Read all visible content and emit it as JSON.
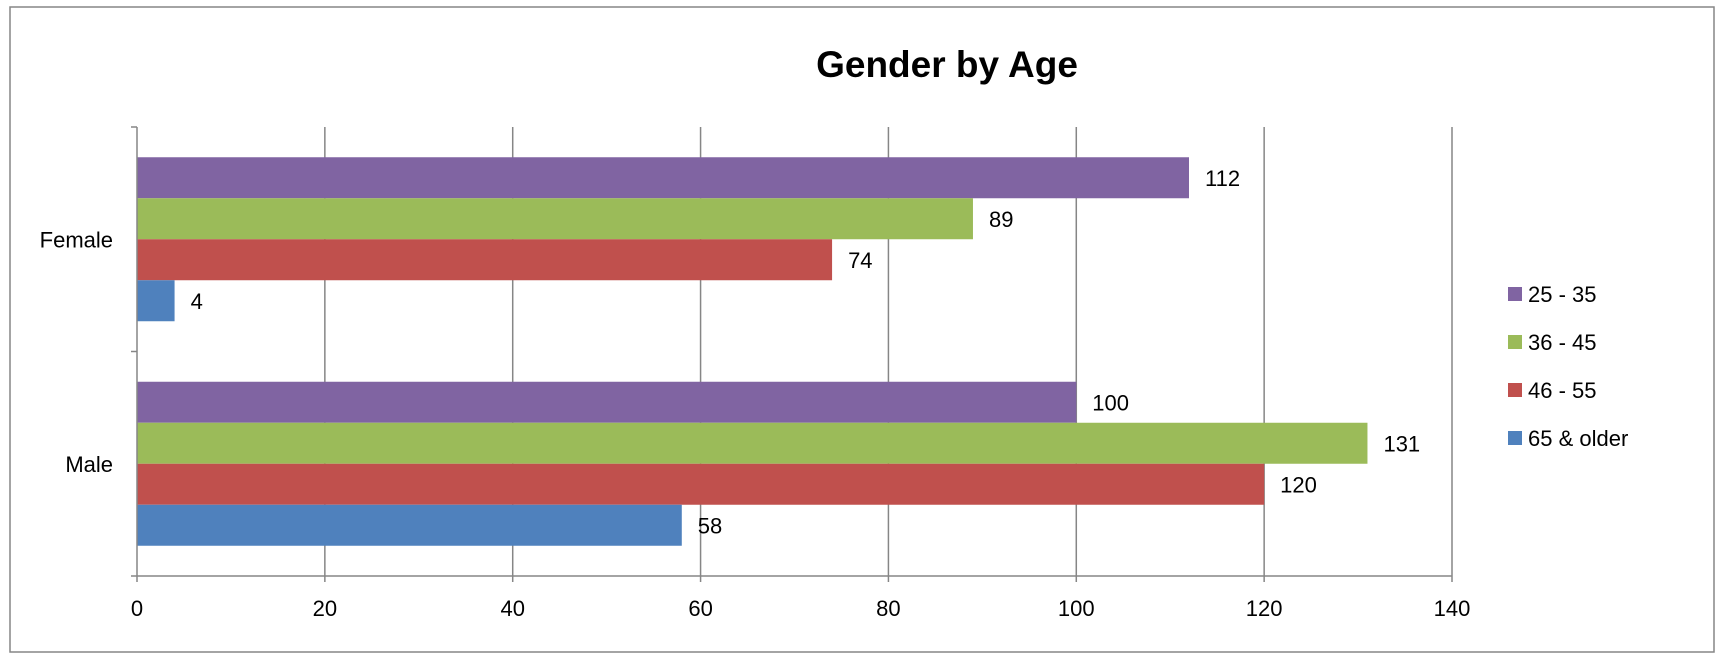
{
  "chart_data": {
    "type": "bar",
    "orientation": "horizontal",
    "title": "Gender by Age",
    "categories": [
      "Female",
      "Male"
    ],
    "series": [
      {
        "name": "25 - 35",
        "color": "#8064A2",
        "values": [
          112,
          100
        ]
      },
      {
        "name": "36 - 45",
        "color": "#9BBB59",
        "values": [
          89,
          131
        ]
      },
      {
        "name": "46 - 55",
        "color": "#C0504D",
        "values": [
          74,
          120
        ]
      },
      {
        "name": "65 & older",
        "color": "#4F81BD",
        "values": [
          4,
          58
        ]
      }
    ],
    "xlim": [
      0,
      140
    ],
    "xticks": [
      0,
      20,
      40,
      60,
      80,
      100,
      120,
      140
    ],
    "data_labels": true,
    "grid": "vertical",
    "legend_position": "right"
  }
}
